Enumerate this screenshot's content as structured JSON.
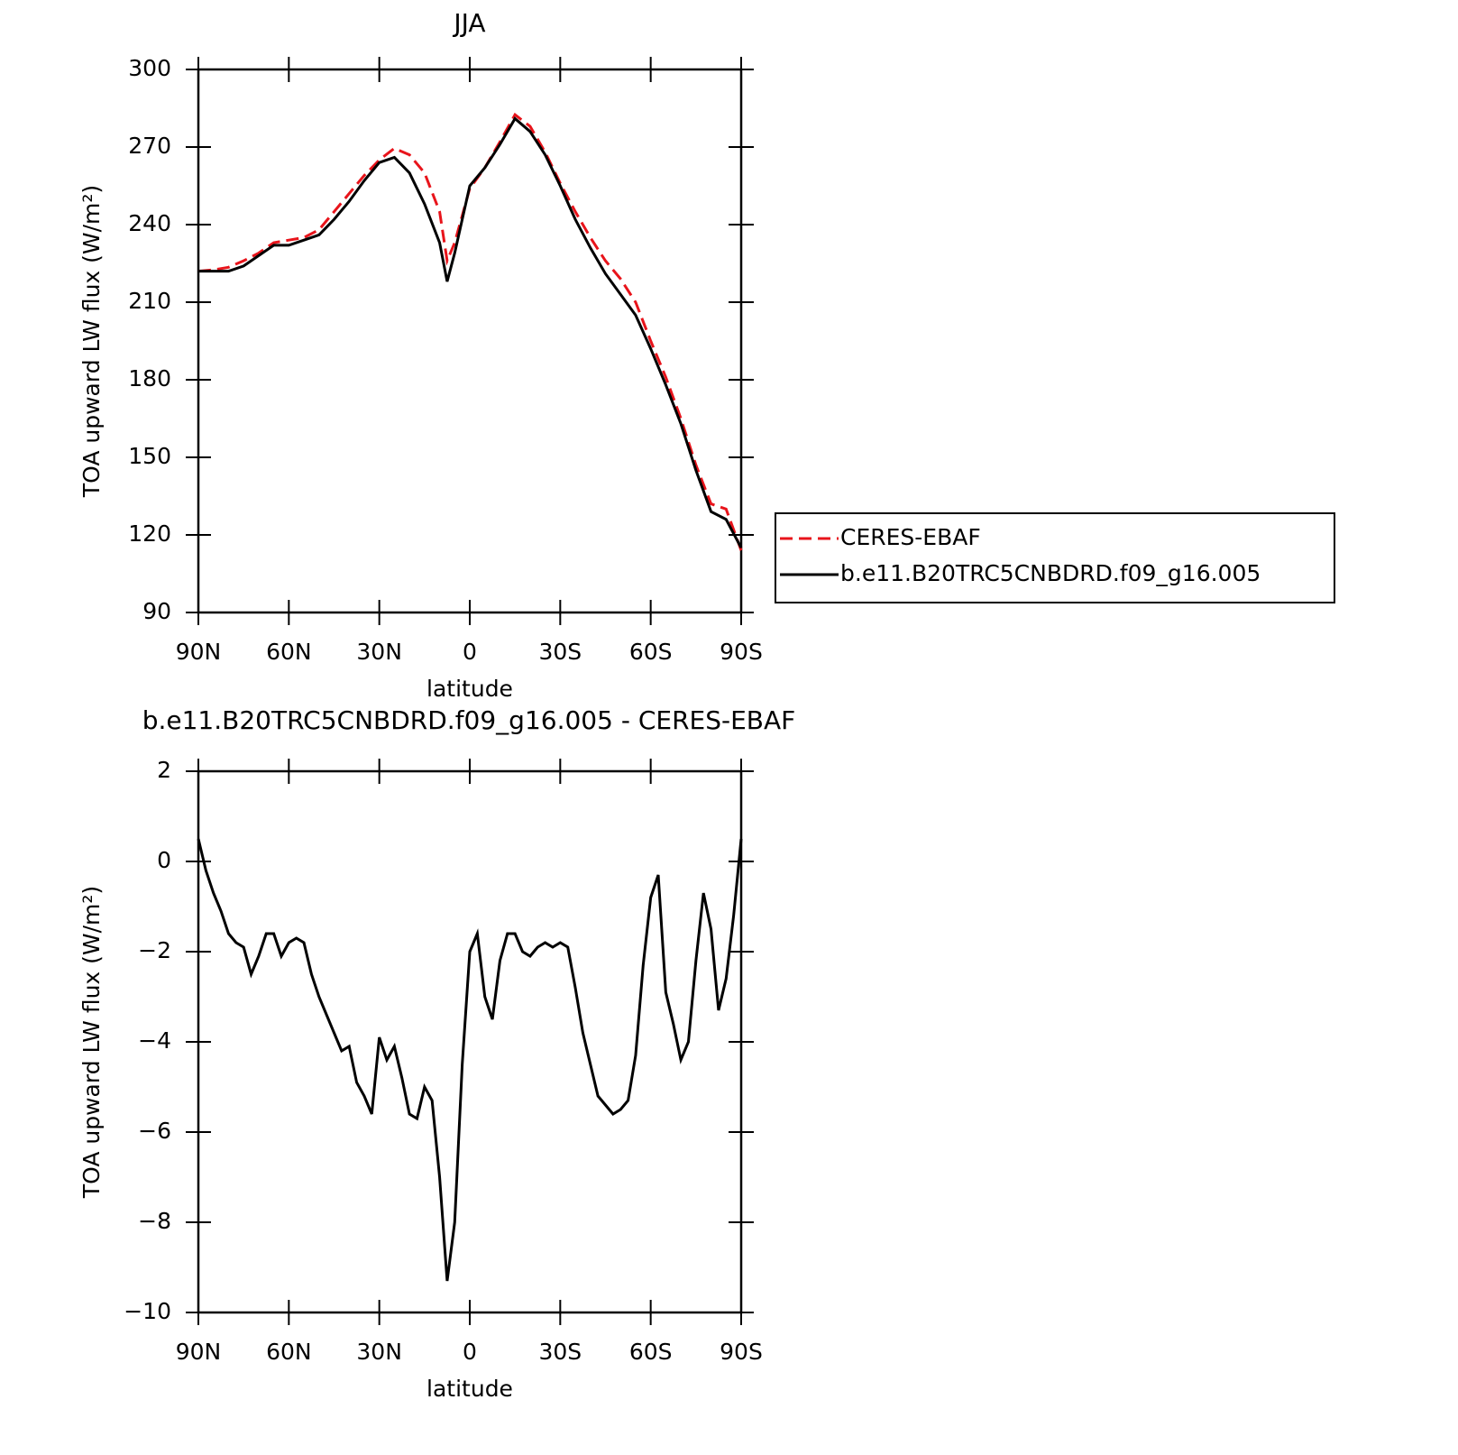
{
  "chart_data": [
    {
      "type": "line",
      "title": "JJA",
      "xlabel": "latitude",
      "ylabel": "TOA upward LW flux (W/m²)",
      "x": [
        90,
        85,
        80,
        75,
        70,
        65,
        60,
        55,
        50,
        45,
        40,
        35,
        30,
        25,
        20,
        15,
        10,
        7.5,
        5,
        0,
        -5,
        -10,
        -15,
        -20,
        -25,
        -30,
        -35,
        -40,
        -45,
        -50,
        -55,
        -60,
        -65,
        -70,
        -75,
        -80,
        -85,
        -90
      ],
      "series": [
        {
          "name": "CERES-EBAF",
          "color": "#e8141b",
          "dashed": true,
          "values": [
            222,
            222.5,
            223.5,
            226,
            229,
            233,
            234,
            235,
            238,
            245,
            252,
            259,
            265,
            269.5,
            267,
            260,
            245,
            226,
            233,
            254,
            262,
            272,
            282.5,
            278,
            268,
            256,
            245,
            235,
            226,
            219,
            210,
            195,
            181,
            165,
            147,
            132,
            130,
            114
          ]
        },
        {
          "name": "b.e11.B20TRC5CNBDRD.f09_g16.005",
          "color": "#000000",
          "dashed": false,
          "values": [
            222,
            222,
            222,
            224,
            228,
            232,
            232,
            234,
            236,
            242,
            249,
            257,
            264,
            266,
            260,
            248,
            233,
            218,
            229,
            255,
            262,
            271,
            281,
            276,
            267,
            255,
            242,
            231,
            221,
            213,
            205,
            192,
            178,
            163,
            145,
            129,
            126,
            115
          ]
        }
      ],
      "xlim": [
        90,
        -90
      ],
      "xticks": [
        {
          "value": 90,
          "label": "90N"
        },
        {
          "value": 60,
          "label": "60N"
        },
        {
          "value": 30,
          "label": "30N"
        },
        0,
        {
          "value": -30,
          "label": "30S"
        },
        {
          "value": -60,
          "label": "60S"
        },
        {
          "value": -90,
          "label": "90S"
        }
      ],
      "ylim": [
        90,
        300
      ],
      "yticks": [
        90,
        120,
        150,
        180,
        210,
        240,
        270,
        300
      ],
      "legend": "outside-right"
    },
    {
      "type": "line",
      "title": "b.e11.B20TRC5CNBDRD.f09_g16.005 - CERES-EBAF",
      "xlabel": "latitude",
      "ylabel": "TOA upward LW flux (W/m²)",
      "x": [
        90,
        87.5,
        85,
        82.5,
        80,
        77.5,
        75,
        72.5,
        70,
        67.5,
        65,
        62.5,
        60,
        57.5,
        55,
        52.5,
        50,
        47.5,
        45,
        42.5,
        40,
        37.5,
        35,
        32.5,
        30,
        27.5,
        25,
        22.5,
        20,
        17.5,
        15,
        12.5,
        10,
        7.5,
        5,
        2.5,
        0,
        -2.5,
        -5,
        -7.5,
        -10,
        -12.5,
        -15,
        -17.5,
        -20,
        -22.5,
        -25,
        -27.5,
        -30,
        -32.5,
        -35,
        -37.5,
        -40,
        -42.5,
        -45,
        -47.5,
        -50,
        -52.5,
        -55,
        -57.5,
        -60,
        -62.5,
        -65,
        -67.5,
        -70,
        -72.5,
        -75,
        -77.5,
        -80,
        -82.5,
        -85,
        -87.5,
        -90
      ],
      "series": [
        {
          "name": "b.e11.B20TRC5CNBDRD.f09_g16.005 - CERES-EBAF",
          "color": "#000000",
          "dashed": false,
          "values": [
            0.5,
            -0.2,
            -0.7,
            -1.1,
            -1.6,
            -1.8,
            -1.9,
            -2.5,
            -2.1,
            -1.6,
            -1.6,
            -2.1,
            -1.8,
            -1.7,
            -1.8,
            -2.5,
            -3.0,
            -3.4,
            -3.8,
            -4.2,
            -4.1,
            -4.9,
            -5.2,
            -5.6,
            -3.9,
            -4.4,
            -4.1,
            -4.8,
            -5.6,
            -5.7,
            -5.0,
            -5.3,
            -7.0,
            -9.3,
            -8.0,
            -4.5,
            -2.0,
            -1.6,
            -3.0,
            -3.5,
            -2.2,
            -1.6,
            -1.6,
            -2.0,
            -2.1,
            -1.9,
            -1.8,
            -1.9,
            -1.8,
            -1.9,
            -2.8,
            -3.8,
            -4.5,
            -5.2,
            -5.4,
            -5.6,
            -5.5,
            -5.3,
            -4.3,
            -2.3,
            -0.8,
            -0.3,
            -2.9,
            -3.6,
            -4.4,
            -4.0,
            -2.2,
            -0.7,
            -1.5,
            -3.3,
            -2.6,
            -1.2,
            0.5
          ]
        }
      ],
      "xlim": [
        90,
        -90
      ],
      "xticks": [
        {
          "value": 90,
          "label": "90N"
        },
        {
          "value": 60,
          "label": "60N"
        },
        {
          "value": 30,
          "label": "30N"
        },
        0,
        {
          "value": -30,
          "label": "30S"
        },
        {
          "value": -60,
          "label": "60S"
        },
        {
          "value": -90,
          "label": "90S"
        }
      ],
      "ylim": [
        -10,
        2
      ],
      "yticks": [
        {
          "value": -10,
          "label": "−10"
        },
        {
          "value": -8,
          "label": "−8"
        },
        {
          "value": -6,
          "label": "−6"
        },
        {
          "value": -4,
          "label": "−4"
        },
        {
          "value": -2,
          "label": "−2"
        },
        0,
        2
      ]
    }
  ]
}
